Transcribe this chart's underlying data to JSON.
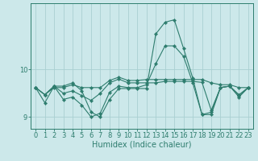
{
  "xlabel": "Humidex (Indice chaleur)",
  "x": [
    0,
    1,
    2,
    3,
    4,
    5,
    6,
    7,
    8,
    9,
    10,
    11,
    12,
    13,
    14,
    15,
    16,
    17,
    18,
    19,
    20,
    21,
    22,
    23
  ],
  "lines": [
    [
      9.62,
      9.47,
      9.62,
      9.62,
      9.68,
      9.62,
      9.62,
      9.62,
      9.77,
      9.84,
      9.77,
      9.77,
      9.79,
      9.79,
      9.79,
      9.79,
      9.79,
      9.79,
      9.79,
      9.72,
      9.68,
      9.68,
      9.62,
      9.62
    ],
    [
      9.62,
      9.47,
      9.65,
      9.65,
      9.72,
      9.55,
      9.1,
      9.0,
      9.37,
      9.6,
      9.6,
      9.6,
      9.6,
      10.75,
      11.0,
      11.05,
      10.45,
      9.82,
      9.05,
      9.05,
      9.62,
      9.65,
      9.42,
      9.62
    ],
    [
      9.62,
      9.47,
      9.65,
      9.5,
      9.55,
      9.45,
      9.35,
      9.5,
      9.72,
      9.8,
      9.72,
      9.72,
      9.72,
      9.72,
      9.75,
      9.75,
      9.75,
      9.75,
      9.73,
      9.14,
      9.62,
      9.65,
      9.45,
      9.62
    ],
    [
      9.62,
      9.3,
      9.65,
      9.37,
      9.42,
      9.25,
      9.0,
      9.08,
      9.52,
      9.65,
      9.62,
      9.62,
      9.68,
      10.12,
      10.5,
      10.5,
      10.28,
      9.72,
      9.05,
      9.1,
      9.62,
      9.65,
      9.47,
      9.62
    ]
  ],
  "line_color": "#2e7d6e",
  "marker": "D",
  "markersize": 2.2,
  "linewidth": 0.8,
  "bg_color": "#cce8ea",
  "grid_color": "#aacfd2",
  "yticks": [
    9,
    10
  ],
  "ylim": [
    8.75,
    11.4
  ],
  "xlim": [
    -0.5,
    23.5
  ],
  "xticks": [
    0,
    1,
    2,
    3,
    4,
    5,
    6,
    7,
    8,
    9,
    10,
    11,
    12,
    13,
    14,
    15,
    16,
    17,
    18,
    19,
    20,
    21,
    22,
    23
  ],
  "tick_fontsize": 6.0,
  "label_fontsize": 7.0
}
